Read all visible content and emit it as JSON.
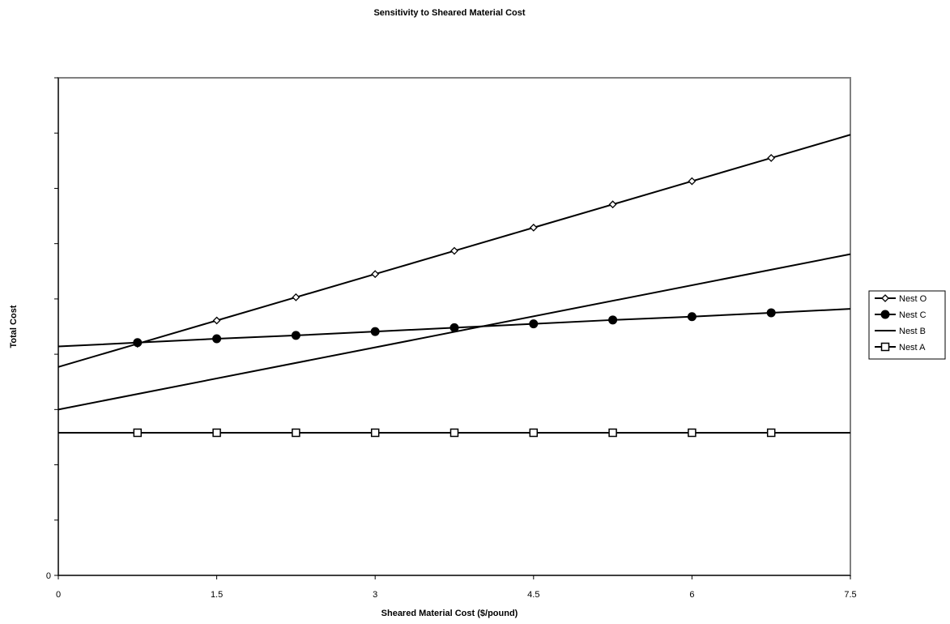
{
  "chart_data": {
    "type": "line",
    "title": "Sensitivity to Sheared Material Cost",
    "xlabel": "Sheared Material Cost ($/pound)",
    "ylabel": "Total Cost",
    "xlim": [
      0,
      7.5
    ],
    "ylim": [
      0,
      9
    ],
    "x_ticks": [
      0,
      1.5,
      3,
      4.5,
      6,
      7.5
    ],
    "x_tick_labels": [
      "0",
      "1.5",
      "3",
      "4.5",
      "6",
      "7.5"
    ],
    "y_tick_values": [
      0,
      1,
      2,
      3,
      4,
      5,
      6,
      7,
      8,
      9
    ],
    "y_tick_labels": [
      "0",
      "",
      "",
      "",
      "",
      "",
      "",
      "",
      "",
      ""
    ],
    "grid": false,
    "legend_position": "right",
    "series": [
      {
        "name": "Nest O",
        "marker": "diamond-open",
        "x": [
          0,
          0.75,
          1.5,
          2.25,
          3,
          3.75,
          4.5,
          5.25,
          6,
          6.75,
          7.5
        ],
        "y": [
          3.77,
          4.19,
          4.61,
          5.03,
          5.45,
          5.87,
          6.29,
          6.71,
          7.13,
          7.55,
          7.97
        ],
        "markers_at": [
          0.75,
          1.5,
          2.25,
          3,
          3.75,
          4.5,
          5.25,
          6,
          6.75
        ]
      },
      {
        "name": "Nest C",
        "marker": "circle-filled",
        "x": [
          0,
          0.75,
          1.5,
          2.25,
          3,
          3.75,
          4.5,
          5.25,
          6,
          6.75,
          7.5
        ],
        "y": [
          4.14,
          4.21,
          4.28,
          4.34,
          4.41,
          4.48,
          4.55,
          4.62,
          4.68,
          4.75,
          4.82
        ],
        "markers_at": [
          0.75,
          1.5,
          2.25,
          3,
          3.75,
          4.5,
          5.25,
          6,
          6.75
        ]
      },
      {
        "name": "Nest B",
        "marker": "none",
        "x": [
          0,
          7.5
        ],
        "y": [
          3.0,
          5.81
        ],
        "markers_at": []
      },
      {
        "name": "Nest A",
        "marker": "square-open",
        "x": [
          0,
          0.75,
          1.5,
          2.25,
          3,
          3.75,
          4.5,
          5.25,
          6,
          6.75,
          7.5
        ],
        "y": [
          2.58,
          2.58,
          2.58,
          2.58,
          2.58,
          2.58,
          2.58,
          2.58,
          2.58,
          2.58,
          2.58
        ],
        "markers_at": [
          0.75,
          1.5,
          2.25,
          3,
          3.75,
          4.5,
          5.25,
          6,
          6.75
        ]
      }
    ]
  }
}
